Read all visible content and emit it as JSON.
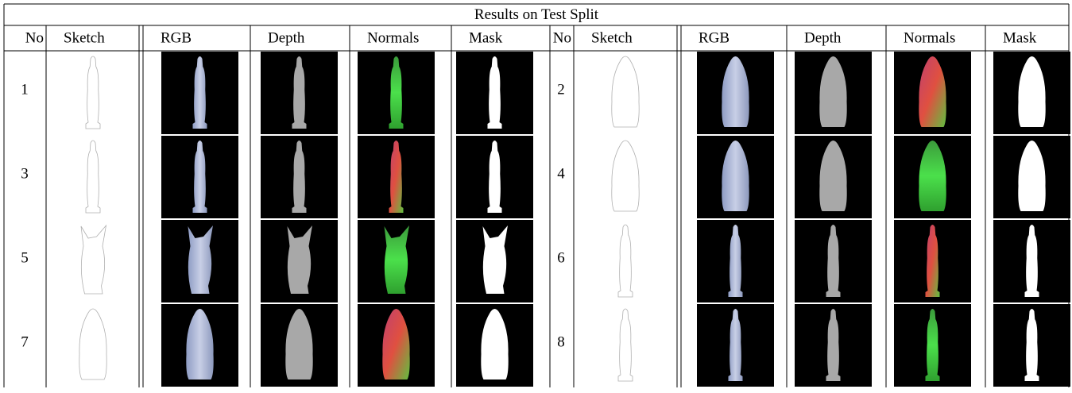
{
  "header": {
    "title": "Results on Test Split",
    "columns": [
      "No",
      "Sketch",
      "RGB",
      "Depth",
      "Normals",
      "Mask",
      "No",
      "Sketch",
      "RGB",
      "Depth",
      "Normals",
      "Mask"
    ]
  },
  "rows": [
    [
      "1",
      "2"
    ],
    [
      "3",
      "4"
    ],
    [
      "5",
      "6"
    ],
    [
      "7",
      "8"
    ]
  ]
}
